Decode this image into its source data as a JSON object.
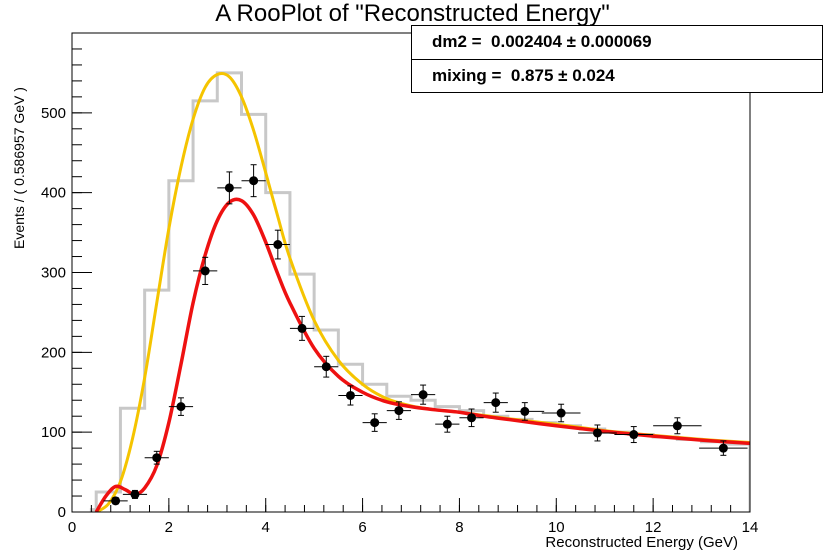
{
  "title": "A RooPlot of \"Reconstructed Energy\"",
  "stats": {
    "dm2_label": "dm2 =  0.002404 ± 0.000069",
    "mixing_label": "mixing =  0.875 ± 0.024"
  },
  "chart_data": {
    "type": "line",
    "title": "A RooPlot of \"Reconstructed Energy\"",
    "xlabel": "Reconstructed Energy (GeV)",
    "ylabel": "Events / ( 0.586957 GeV )",
    "xlim": [
      0,
      14
    ],
    "ylim": [
      0,
      600
    ],
    "x_ticks": [
      "0",
      "2",
      "4",
      "6",
      "8",
      "10",
      "12",
      "14"
    ],
    "y_ticks": [
      "0",
      "100",
      "200",
      "300",
      "400",
      "500"
    ],
    "grid": false,
    "colors": {
      "histogram": "#c8c8c8",
      "yellow_curve": "#f5c400",
      "red_curve": "#ee1111",
      "points": "#000000"
    },
    "histogram": {
      "name": "",
      "bin_edges": [
        0.4,
        0.5,
        1.0,
        1.5,
        2.0,
        2.5,
        3.0,
        3.5,
        4.0,
        4.5,
        5.0,
        5.5,
        6.0,
        6.5,
        7.0,
        7.5,
        8.0,
        8.5,
        9.0,
        9.5,
        10.0,
        10.5,
        11.0,
        11.5,
        12.0,
        12.5,
        13.0,
        13.5,
        14.0
      ],
      "values": [
        3,
        25,
        130,
        278,
        415,
        515,
        550,
        498,
        400,
        298,
        228,
        185,
        160,
        145,
        140,
        132,
        127,
        120,
        116,
        112,
        108,
        104,
        100,
        97,
        94,
        91,
        88,
        85
      ]
    },
    "series": [
      {
        "name": "",
        "x": [
          0.5,
          0.75,
          1.0,
          1.25,
          1.5,
          1.75,
          2.0,
          2.25,
          2.5,
          2.75,
          3.0,
          3.25,
          3.5,
          3.75,
          4.0,
          4.25,
          4.5,
          5.0,
          5.5,
          6.0,
          6.5,
          7.0,
          7.5,
          8.0,
          8.5,
          9.0,
          10.0,
          11.0,
          12.0,
          13.0,
          14.0
        ],
        "values": [
          0,
          10,
          38,
          92,
          168,
          262,
          355,
          432,
          492,
          532,
          548,
          545,
          520,
          478,
          425,
          370,
          318,
          240,
          190,
          160,
          142,
          133,
          128,
          125,
          121,
          117,
          110,
          102,
          96,
          91,
          87
        ]
      },
      {
        "name": "",
        "x": [
          0.5,
          0.7,
          0.9,
          1.1,
          1.3,
          1.5,
          1.75,
          2.0,
          2.25,
          2.5,
          2.75,
          3.0,
          3.25,
          3.5,
          3.75,
          4.0,
          4.25,
          4.5,
          5.0,
          5.5,
          6.0,
          6.5,
          7.0,
          7.5,
          8.0,
          8.5,
          9.0,
          10.0,
          11.0,
          12.0,
          13.0,
          14.0
        ],
        "values": [
          0,
          20,
          32,
          28,
          22,
          30,
          58,
          112,
          185,
          262,
          322,
          365,
          388,
          390,
          372,
          338,
          298,
          262,
          205,
          170,
          150,
          138,
          132,
          128,
          125,
          120,
          116,
          108,
          101,
          95,
          90,
          86
        ]
      }
    ],
    "points": {
      "name": "",
      "x": [
        0.9,
        1.3,
        1.75,
        2.25,
        2.75,
        3.25,
        3.75,
        4.25,
        4.75,
        5.25,
        5.75,
        6.25,
        6.75,
        7.25,
        7.75,
        8.25,
        8.75,
        9.35,
        10.1,
        10.85,
        11.6,
        12.5,
        13.45
      ],
      "y": [
        14,
        22,
        68,
        132,
        302,
        406,
        415,
        335,
        230,
        182,
        146,
        112,
        127,
        147,
        110,
        118,
        137,
        126,
        124,
        99,
        97,
        108,
        80
      ],
      "xerr": [
        0.25,
        0.25,
        0.25,
        0.25,
        0.25,
        0.25,
        0.25,
        0.25,
        0.25,
        0.25,
        0.25,
        0.25,
        0.25,
        0.25,
        0.25,
        0.25,
        0.25,
        0.4,
        0.4,
        0.4,
        0.4,
        0.5,
        0.5
      ],
      "yerr": [
        4,
        5,
        8,
        11,
        17,
        20,
        20,
        18,
        15,
        13,
        12,
        11,
        11,
        12,
        10,
        11,
        12,
        11,
        11,
        10,
        10,
        10,
        9
      ]
    }
  }
}
